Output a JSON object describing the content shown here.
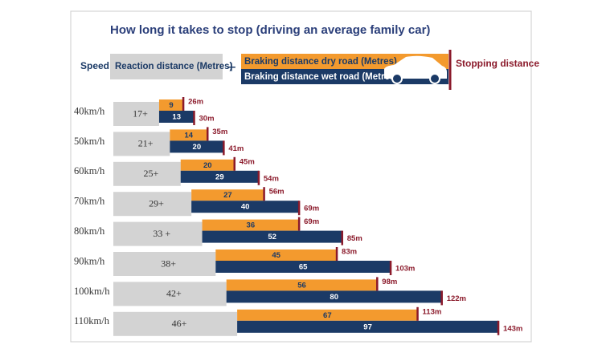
{
  "chart_data": {
    "type": "stacked-bar",
    "title": "How long it takes to stop (driving an average family car)",
    "category_label": "Speed",
    "plus": "+",
    "categories": [
      "40km/h",
      "50km/h",
      "60km/h",
      "70km/h",
      "80km/h",
      "90km/h",
      "100km/h",
      "110km/h"
    ],
    "series": [
      {
        "name": "Reaction distance (Metres)",
        "color": "#d3d3d3",
        "values": [
          17,
          21,
          25,
          29,
          33,
          38,
          42,
          46
        ],
        "value_labels": [
          "17+",
          "21+",
          "25+",
          "29+",
          "33 +",
          "38+",
          "42+",
          "46+"
        ]
      },
      {
        "name": "Braking distance dry road (Metres)",
        "color": "#f39a2e",
        "values": [
          9,
          14,
          20,
          27,
          36,
          45,
          56,
          67
        ]
      },
      {
        "name": "Braking distance wet road (Metres)",
        "color": "#1b3a66",
        "values": [
          13,
          20,
          29,
          40,
          52,
          65,
          80,
          97
        ]
      }
    ],
    "stopping": {
      "name": "Stopping distance",
      "color": "#8b1a2b",
      "dry": {
        "values": [
          26,
          35,
          45,
          56,
          69,
          83,
          98,
          113
        ],
        "value_labels": [
          "26m",
          "35m",
          "45m",
          "56m",
          "69m",
          "83m",
          "98m",
          "113m"
        ]
      },
      "wet": {
        "values": [
          30,
          41,
          54,
          69,
          85,
          103,
          122,
          143
        ],
        "value_labels": [
          "30m",
          "41m",
          "54m",
          "69m",
          "85m",
          "103m",
          "122m",
          "143m"
        ]
      }
    }
  }
}
